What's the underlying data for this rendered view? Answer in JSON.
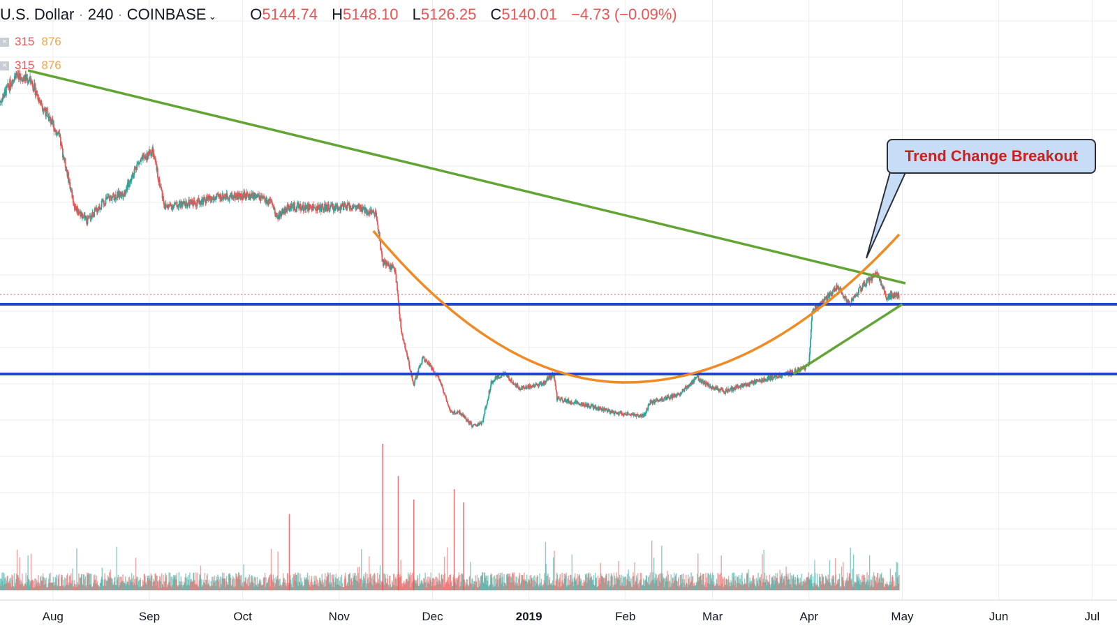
{
  "header": {
    "symbol": "U.S. Dollar",
    "interval": "240",
    "exchange": "COINBASE",
    "ohlc": [
      {
        "label": "O",
        "value": "5144.74"
      },
      {
        "label": "H",
        "value": "5148.10"
      },
      {
        "label": "L",
        "value": "5126.25"
      },
      {
        "label": "C",
        "value": "5140.01"
      }
    ],
    "change": "−4.73 (−0.09%)"
  },
  "indicators": [
    {
      "close_icon": "×",
      "a": "315",
      "b": "876"
    },
    {
      "close_icon": "×",
      "a": "315",
      "b": "876"
    }
  ],
  "annotation": {
    "text": "Trend Change Breakout"
  },
  "icons": {
    "symbol_dropdown": "chevron-down-icon",
    "indicator_close": "close-icon"
  },
  "colors": {
    "up": "#26a69a",
    "down": "#ef5350",
    "downtrend": "#63a535",
    "cup": "#f08a24",
    "support": "#1f45c8",
    "callout_fill": "#c7dcf5",
    "callout_text": "#cc1f1f",
    "grid": "#e8ecf2"
  },
  "chart_data": {
    "type": "candlestick",
    "x_range": [
      "2018-07-15",
      "2019-07-09"
    ],
    "x_ticks": [
      {
        "label": "Aug",
        "date": "2018-08-01"
      },
      {
        "label": "Sep",
        "date": "2018-09-01"
      },
      {
        "label": "Oct",
        "date": "2018-10-01"
      },
      {
        "label": "Nov",
        "date": "2018-11-01"
      },
      {
        "label": "Dec",
        "date": "2018-12-01"
      },
      {
        "label": "2019",
        "date": "2019-01-01",
        "bold": true
      },
      {
        "label": "Feb",
        "date": "2019-02-01"
      },
      {
        "label": "Mar",
        "date": "2019-03-01"
      },
      {
        "label": "Apr",
        "date": "2019-04-01"
      },
      {
        "label": "May",
        "date": "2019-05-01"
      },
      {
        "label": "Jun",
        "date": "2019-06-01"
      },
      {
        "label": "Jul",
        "date": "2019-07-01"
      }
    ],
    "price_path": [
      [
        "2018-07-15",
        7900
      ],
      [
        "2018-07-20",
        8300
      ],
      [
        "2018-07-25",
        8200
      ],
      [
        "2018-07-28",
        7900
      ],
      [
        "2018-08-03",
        7400
      ],
      [
        "2018-08-08",
        6400
      ],
      [
        "2018-08-12",
        6200
      ],
      [
        "2018-08-18",
        6500
      ],
      [
        "2018-08-24",
        6600
      ],
      [
        "2018-08-28",
        7000
      ],
      [
        "2018-09-02",
        7200
      ],
      [
        "2018-09-06",
        6400
      ],
      [
        "2018-09-15",
        6450
      ],
      [
        "2018-09-25",
        6550
      ],
      [
        "2018-10-05",
        6550
      ],
      [
        "2018-10-10",
        6450
      ],
      [
        "2018-10-12",
        6250
      ],
      [
        "2018-10-16",
        6400
      ],
      [
        "2018-10-25",
        6380
      ],
      [
        "2018-11-05",
        6400
      ],
      [
        "2018-11-13",
        6300
      ],
      [
        "2018-11-15",
        5600
      ],
      [
        "2018-11-19",
        5500
      ],
      [
        "2018-11-21",
        4600
      ],
      [
        "2018-11-25",
        3850
      ],
      [
        "2018-11-28",
        4250
      ],
      [
        "2018-12-03",
        3950
      ],
      [
        "2018-12-07",
        3450
      ],
      [
        "2018-12-10",
        3450
      ],
      [
        "2018-12-14",
        3250
      ],
      [
        "2018-12-17",
        3300
      ],
      [
        "2018-12-20",
        3900
      ],
      [
        "2018-12-24",
        4000
      ],
      [
        "2018-12-29",
        3800
      ],
      [
        "2019-01-05",
        3850
      ],
      [
        "2019-01-09",
        4000
      ],
      [
        "2019-01-10",
        3650
      ],
      [
        "2019-01-20",
        3550
      ],
      [
        "2019-01-28",
        3450
      ],
      [
        "2019-02-07",
        3400
      ],
      [
        "2019-02-09",
        3600
      ],
      [
        "2019-02-18",
        3700
      ],
      [
        "2019-02-24",
        3950
      ],
      [
        "2019-02-28",
        3820
      ],
      [
        "2019-03-05",
        3750
      ],
      [
        "2019-03-15",
        3900
      ],
      [
        "2019-03-25",
        4000
      ],
      [
        "2019-03-31",
        4100
      ],
      [
        "2019-04-01",
        4150
      ],
      [
        "2019-04-02",
        4900
      ],
      [
        "2019-04-05",
        5000
      ],
      [
        "2019-04-10",
        5250
      ],
      [
        "2019-04-14",
        5000
      ],
      [
        "2019-04-18",
        5250
      ],
      [
        "2019-04-23",
        5450
      ],
      [
        "2019-04-26",
        5100
      ],
      [
        "2019-04-30",
        5140
      ]
    ],
    "volume_spikes": [
      {
        "date": "2018-10-16",
        "relative": 0.52
      },
      {
        "date": "2018-11-15",
        "relative": 1.0
      },
      {
        "date": "2018-11-20",
        "relative": 0.78
      },
      {
        "date": "2018-11-25",
        "relative": 0.62
      },
      {
        "date": "2018-12-08",
        "relative": 0.69
      },
      {
        "date": "2018-12-11",
        "relative": 0.6
      }
    ],
    "drawings": {
      "downtrend_line": {
        "from": [
          "2018-07-24",
          8350
        ],
        "to": [
          "2019-05-02",
          5300
        ]
      },
      "rising_support_line": {
        "from": [
          "2019-03-27",
          4000
        ],
        "to": [
          "2019-05-01",
          5000
        ]
      },
      "cup_curve": {
        "from": [
          "2018-11-12",
          6050
        ],
        "bottom": [
          "2019-02-01",
          3880
        ],
        "to": [
          "2019-04-30",
          6000
        ]
      },
      "horizontal_levels": [
        5000,
        4000
      ],
      "last_price": 5140.01
    }
  }
}
